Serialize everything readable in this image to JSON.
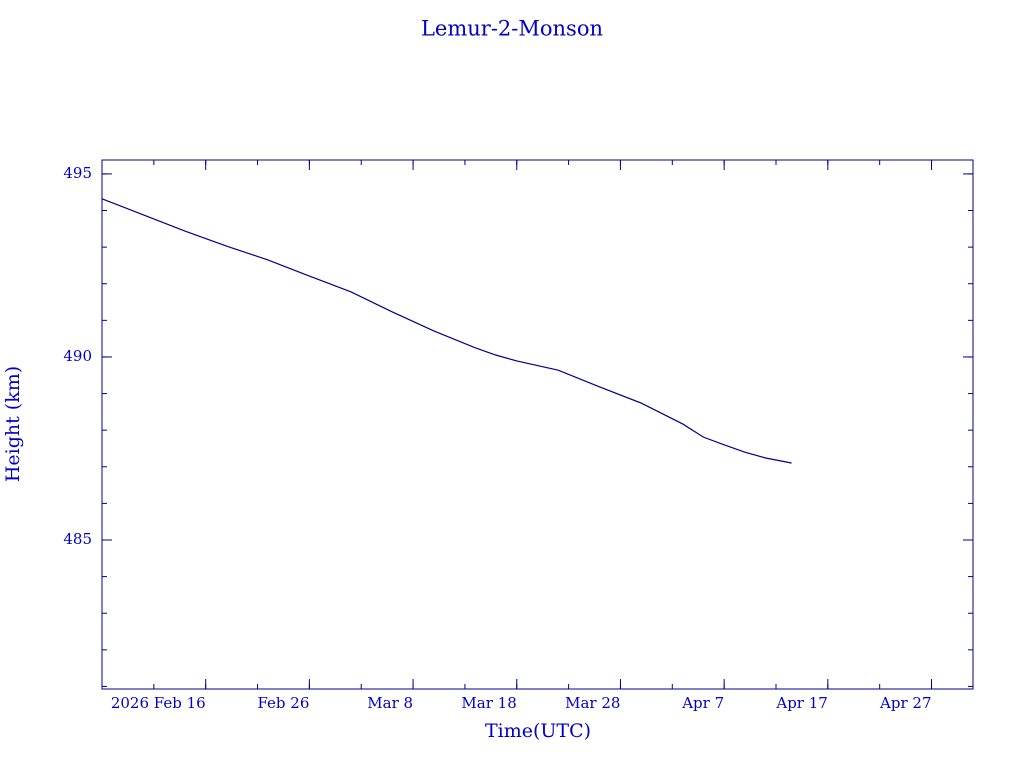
{
  "chart_data": {
    "type": "line",
    "title": "Lemur-2-Monson",
    "xlabel": "Time(UTC)",
    "ylabel": "Height (km)",
    "color": "#00008b",
    "x": [
      "2026-02-06",
      "2026-02-10",
      "2026-02-14",
      "2026-02-18",
      "2026-02-22",
      "2026-02-26",
      "2026-03-02",
      "2026-03-06",
      "2026-03-10",
      "2026-03-14",
      "2026-03-16",
      "2026-03-18",
      "2026-03-22",
      "2026-03-26",
      "2026-03-30",
      "2026-04-03",
      "2026-04-05",
      "2026-04-07",
      "2026-04-09",
      "2026-04-11",
      "2026-04-13",
      "2026-04-13T12:00"
    ],
    "values": [
      494.32,
      493.88,
      493.44,
      493.03,
      492.65,
      492.21,
      491.78,
      491.23,
      490.71,
      490.25,
      490.05,
      489.89,
      489.64,
      489.18,
      488.74,
      488.17,
      487.81,
      487.6,
      487.4,
      487.24,
      487.13,
      487.1
    ],
    "xlim": [
      "2026-02-06",
      "2026-05-01"
    ],
    "ylim": [
      480.93,
      495.38
    ],
    "xticks": [
      {
        "value": "2026-02-16",
        "label": "2026 Feb 16"
      },
      {
        "value": "2026-02-26",
        "label": "Feb 26"
      },
      {
        "value": "2026-03-08",
        "label": "Mar 8"
      },
      {
        "value": "2026-03-18",
        "label": "Mar 18"
      },
      {
        "value": "2026-03-28",
        "label": "Mar 28"
      },
      {
        "value": "2026-04-07",
        "label": "Apr 7"
      },
      {
        "value": "2026-04-17",
        "label": "Apr 17"
      },
      {
        "value": "2026-04-27",
        "label": "Apr 27"
      }
    ],
    "yticks": [
      485,
      490,
      495
    ],
    "grid": false
  }
}
